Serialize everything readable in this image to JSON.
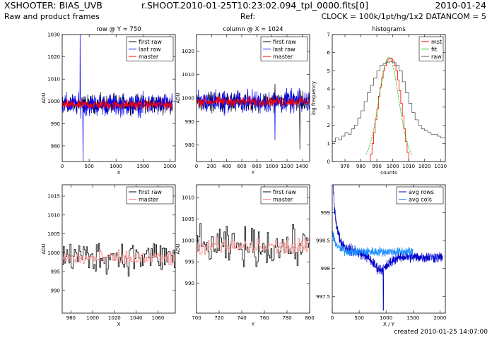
{
  "header": {
    "instrument": "XSHOOTER: BIAS_UVB",
    "file": "r.SHOOT.2010-01-25T10:23:02.094_tpl_0000.fits[0]",
    "date": "2010-01-24",
    "subtitle": "Raw and product frames",
    "ref": "Ref:",
    "clock": "CLOCK = 100k/1pt/hg/1x2 DATANCOM = 5"
  },
  "footer": {
    "created": "created 2010-01-25 14:07:00"
  },
  "colors": {
    "first_raw": "#000000",
    "last_raw": "#0000ff",
    "master": "#ff0000",
    "master_light": "#ff8080",
    "fit": "#00cc00",
    "avg_rows": "#0000cc",
    "avg_cols": "#1e90ff"
  },
  "chart_data": [
    {
      "id": "row",
      "type": "line",
      "title": "row @ Y = 750",
      "xlabel": "X",
      "ylabel": "ADU",
      "xlim": [
        0,
        2100
      ],
      "ylim": [
        973,
        1030
      ],
      "xticks": [
        0,
        500,
        1000,
        1500,
        2000
      ],
      "yticks": [
        980,
        990,
        1000,
        1010,
        1020,
        1030
      ],
      "legend": "top-right",
      "series": [
        {
          "name": "first raw",
          "color": "#000000",
          "center": 998.8,
          "amplitude": 4.5,
          "n": 420,
          "x_range": [
            0,
            2048
          ]
        },
        {
          "name": "last raw",
          "color": "#0000ff",
          "center": 998.5,
          "amplitude": 5.5,
          "n": 420,
          "x_range": [
            0,
            2048
          ],
          "spikes": [
            [
              330,
              1030
            ],
            [
              385,
              973
            ]
          ]
        },
        {
          "name": "master",
          "color": "#ff0000",
          "center": 998.5,
          "amplitude": 2.3,
          "n": 420,
          "x_range": [
            0,
            2048
          ]
        }
      ]
    },
    {
      "id": "column",
      "type": "line",
      "title": "column @ X = 1024",
      "xlabel": "Y",
      "ylabel": "ADU",
      "xlim": [
        0,
        1500
      ],
      "ylim": [
        973,
        1027
      ],
      "xticks": [
        0,
        200,
        400,
        600,
        800,
        1000,
        1200,
        1400
      ],
      "yticks": [
        980,
        990,
        1000,
        1010,
        1020
      ],
      "legend": "top-right",
      "series": [
        {
          "name": "first raw",
          "color": "#000000",
          "center": 998.5,
          "amplitude": 4.5,
          "n": 360,
          "x_range": [
            0,
            1500
          ],
          "spikes": [
            [
              1040,
              1006
            ],
            [
              1370,
              978
            ]
          ]
        },
        {
          "name": "last raw",
          "color": "#0000ff",
          "center": 998.5,
          "amplitude": 5.5,
          "n": 360,
          "x_range": [
            0,
            1500
          ],
          "spikes": [
            [
              1040,
              982
            ]
          ]
        },
        {
          "name": "master",
          "color": "#ff0000",
          "center": 998.5,
          "amplitude": 2.3,
          "n": 360,
          "x_range": [
            0,
            1500
          ]
        }
      ]
    },
    {
      "id": "histograms",
      "type": "line",
      "title": "histograms",
      "xlabel": "counts",
      "ylabel": "log frequency",
      "xlim": [
        962,
        1033
      ],
      "ylim": [
        0,
        7
      ],
      "xticks": [
        970,
        980,
        990,
        1000,
        1010,
        1020,
        1030
      ],
      "yticks": [
        0,
        1,
        2,
        3,
        4,
        5,
        6,
        7
      ],
      "legend": "top-right",
      "series": [
        {
          "name": "mst",
          "color": "#ff0000",
          "step": true,
          "x": [
            985,
            986,
            987,
            988,
            989,
            990,
            991,
            992,
            993,
            994,
            995,
            996,
            997,
            998,
            999,
            1000,
            1001,
            1002,
            1003,
            1004,
            1005,
            1006,
            1007,
            1008,
            1009,
            1010
          ],
          "y": [
            0,
            0.4,
            1.0,
            1.6,
            2.3,
            2.9,
            3.6,
            4.1,
            4.6,
            5.0,
            5.3,
            5.5,
            5.65,
            5.7,
            5.65,
            5.55,
            5.3,
            5.0,
            4.5,
            3.9,
            3.2,
            2.5,
            1.8,
            1.1,
            0.5,
            0
          ]
        },
        {
          "name": "fit",
          "color": "#00cc00",
          "gauss": {
            "mu": 997.5,
            "amp": 5.75,
            "sigma": 6.2,
            "from": 983,
            "to": 1012
          }
        },
        {
          "name": "raw",
          "color": "#555555",
          "step": true,
          "x": [
            962,
            964,
            966,
            968,
            970,
            972,
            974,
            976,
            978,
            980,
            982,
            984,
            986,
            988,
            990,
            992,
            994,
            996,
            998,
            1000,
            1002,
            1004,
            1006,
            1008,
            1010,
            1012,
            1014,
            1016,
            1018,
            1020,
            1022,
            1024,
            1026,
            1028,
            1030,
            1033
          ],
          "y": [
            1.1,
            1.3,
            1.2,
            1.4,
            1.6,
            1.5,
            1.8,
            2.0,
            2.4,
            2.8,
            3.3,
            3.8,
            4.2,
            4.6,
            5.0,
            5.3,
            5.4,
            5.45,
            5.5,
            5.45,
            5.3,
            5.0,
            4.4,
            3.8,
            3.2,
            2.7,
            2.3,
            2.0,
            1.8,
            1.7,
            1.6,
            1.5,
            1.5,
            1.4,
            1.3,
            1.3
          ]
        }
      ]
    },
    {
      "id": "row-zoom",
      "type": "line",
      "title": "",
      "xlabel": "X",
      "ylabel": "ADU",
      "xlim": [
        972,
        1076
      ],
      "ylim": [
        984,
        1018
      ],
      "xticks": [
        980,
        1000,
        1020,
        1040,
        1060
      ],
      "yticks": [
        990,
        995,
        1000,
        1005,
        1010,
        1015
      ],
      "legend": "top-right",
      "series": [
        {
          "name": "first raw",
          "color": "#000000",
          "step": true,
          "center": 999,
          "amplitude": 4.8,
          "n": 104,
          "x_range": [
            972,
            1076
          ]
        },
        {
          "name": "master",
          "color": "#ff8080",
          "step": true,
          "center": 998.5,
          "amplitude": 2.2,
          "n": 104,
          "x_range": [
            972,
            1076
          ]
        }
      ]
    },
    {
      "id": "column-zoom",
      "type": "line",
      "title": "",
      "xlabel": "Y",
      "ylabel": "ADU",
      "xlim": [
        700,
        800
      ],
      "ylim": [
        983,
        1013
      ],
      "xticks": [
        700,
        720,
        740,
        760,
        780,
        800
      ],
      "yticks": [
        990,
        995,
        1000,
        1005,
        1010
      ],
      "legend": "top-right",
      "series": [
        {
          "name": "first raw",
          "color": "#000000",
          "step": true,
          "center": 998.5,
          "amplitude": 4.8,
          "n": 100,
          "x_range": [
            700,
            800
          ]
        },
        {
          "name": "master",
          "color": "#ff8080",
          "step": true,
          "center": 998.5,
          "amplitude": 2.2,
          "n": 100,
          "x_range": [
            700,
            800
          ]
        }
      ]
    },
    {
      "id": "averages",
      "type": "line",
      "title": "",
      "xlabel": "X / Y",
      "ylabel": "",
      "xlim": [
        0,
        2100
      ],
      "ylim": [
        997.2,
        999.5
      ],
      "xticks": [
        0,
        500,
        1000,
        1500,
        2000
      ],
      "yticks": [
        997.5,
        998,
        998.5,
        999
      ],
      "yticklabels": [
        "997.5",
        "998",
        "998.5",
        "999"
      ],
      "legend": "top-right",
      "series": [
        {
          "name": "avg rows",
          "color": "#0000cc",
          "profile": "rows",
          "x_range": [
            0,
            2048
          ],
          "n": 700
        },
        {
          "name": "avg cols",
          "color": "#1e90ff",
          "profile": "cols",
          "x_range": [
            0,
            1500
          ],
          "n": 500
        }
      ]
    }
  ]
}
